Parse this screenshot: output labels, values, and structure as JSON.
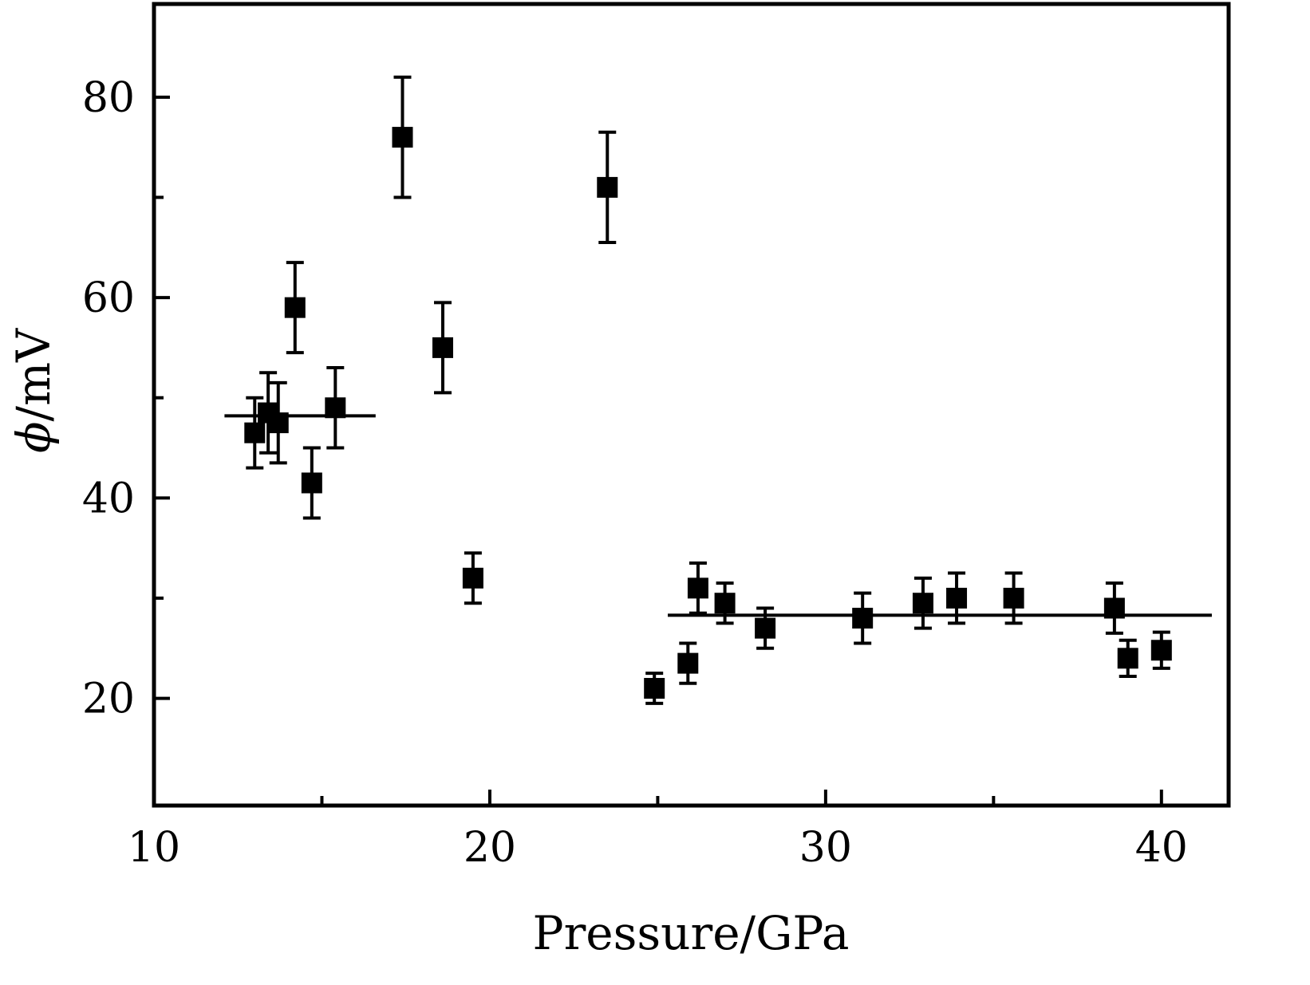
{
  "chart_data": {
    "type": "scatter",
    "title": "",
    "xlabel": "Pressure/GPa",
    "ylabel_symbol": "ϕ",
    "ylabel_rest": "/mV",
    "xlim": [
      10,
      42
    ],
    "ylim": [
      9.3,
      89.3
    ],
    "xticks": [
      10,
      20,
      30,
      40
    ],
    "yticks": [
      20,
      40,
      60,
      80
    ],
    "xminor": [
      15,
      25,
      35
    ],
    "yminor": [
      30,
      50,
      70
    ],
    "grid": false,
    "legend": "none",
    "marker": "square",
    "marker_color": "#000000",
    "points": [
      {
        "x": 13.0,
        "y": 46.5,
        "err": 3.5
      },
      {
        "x": 13.4,
        "y": 48.5,
        "err": 4.0
      },
      {
        "x": 13.7,
        "y": 47.5,
        "err": 4.0
      },
      {
        "x": 14.2,
        "y": 59.0,
        "err": 4.5
      },
      {
        "x": 14.7,
        "y": 41.5,
        "err": 3.5
      },
      {
        "x": 15.4,
        "y": 49.0,
        "err": 4.0
      },
      {
        "x": 17.4,
        "y": 76.0,
        "err": 6.0
      },
      {
        "x": 18.6,
        "y": 55.0,
        "err": 4.5
      },
      {
        "x": 19.5,
        "y": 32.0,
        "err": 2.5
      },
      {
        "x": 23.5,
        "y": 71.0,
        "err": 5.5
      },
      {
        "x": 24.9,
        "y": 21.0,
        "err": 1.5
      },
      {
        "x": 25.9,
        "y": 23.5,
        "err": 2.0
      },
      {
        "x": 26.2,
        "y": 31.0,
        "err": 2.5
      },
      {
        "x": 27.0,
        "y": 29.5,
        "err": 2.0
      },
      {
        "x": 28.2,
        "y": 27.0,
        "err": 2.0
      },
      {
        "x": 31.1,
        "y": 28.0,
        "err": 2.5
      },
      {
        "x": 32.9,
        "y": 29.5,
        "err": 2.5
      },
      {
        "x": 33.9,
        "y": 30.0,
        "err": 2.5
      },
      {
        "x": 35.6,
        "y": 30.0,
        "err": 2.5
      },
      {
        "x": 38.6,
        "y": 29.0,
        "err": 2.5
      },
      {
        "x": 39.0,
        "y": 24.0,
        "err": 1.8
      },
      {
        "x": 40.0,
        "y": 24.8,
        "err": 1.8
      }
    ],
    "mean_lines": [
      {
        "y": 48.2,
        "x1": 12.1,
        "x2": 16.6
      },
      {
        "y": 28.3,
        "x1": 25.3,
        "x2": 41.5
      }
    ]
  }
}
